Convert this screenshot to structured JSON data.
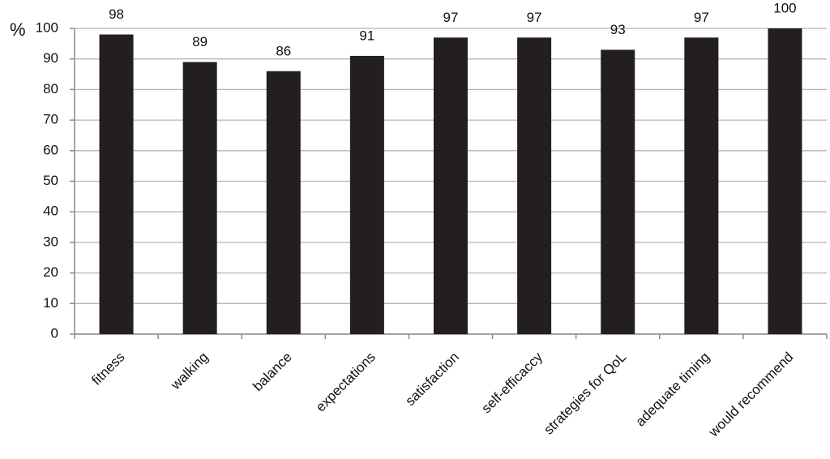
{
  "chart_data": {
    "type": "bar",
    "y_label": "%",
    "categories": [
      "fitness",
      "walking",
      "balance",
      "expectations",
      "satisfaction",
      "self-efficaccy",
      "strategies for QoL",
      "adequate timing",
      "would recommend"
    ],
    "values": [
      98,
      89,
      86,
      91,
      97,
      97,
      93,
      97,
      100
    ],
    "color": "#231f20",
    "ylim": [
      0,
      100
    ],
    "yticks": [
      0,
      10,
      20,
      30,
      40,
      50,
      60,
      70,
      80,
      90,
      100
    ],
    "grid": true
  }
}
